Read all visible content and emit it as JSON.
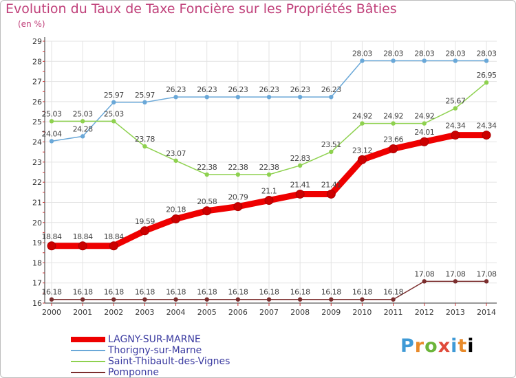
{
  "title": "Evolution du Taux de Taxe Foncière sur les Propriétés Bâties",
  "unit_label": "(en %)",
  "logo": [
    "P",
    "r",
    "o",
    "x",
    "i",
    "t",
    "i"
  ],
  "chart_data": {
    "type": "line",
    "x": [
      "2000",
      "2001",
      "2002",
      "2003",
      "2004",
      "2005",
      "2006",
      "2007",
      "2008",
      "2009",
      "2010",
      "2011",
      "2012",
      "2013",
      "2014"
    ],
    "ylim": [
      16,
      29
    ],
    "yticks": [
      "16",
      "17",
      "18",
      "19",
      "20",
      "21",
      "22",
      "23",
      "24",
      "25",
      "26",
      "27",
      "28",
      "29"
    ],
    "grid": true,
    "legend": "bottom-left",
    "series": [
      {
        "name": "LAGNY-SUR-MARNE",
        "color": "#ee0000",
        "values": [
          18.84,
          18.84,
          18.84,
          19.59,
          20.18,
          20.58,
          20.79,
          21.1,
          21.41,
          21.41,
          23.12,
          23.66,
          24.01,
          24.34,
          24.34
        ],
        "labels": [
          "18.84",
          "18.84",
          "18.84",
          "19.59",
          "20.18",
          "20.58",
          "20.79",
          "21.1",
          "21.41",
          "21.41",
          "23.12",
          "23.66",
          "24.01",
          "24.34",
          "24.34"
        ]
      },
      {
        "name": "Thorigny-sur-Marne",
        "color": "#6aa8d8",
        "values": [
          24.04,
          24.28,
          25.97,
          25.97,
          26.23,
          26.23,
          26.23,
          26.23,
          26.23,
          26.23,
          28.03,
          28.03,
          28.03,
          28.03,
          28.03
        ],
        "labels": [
          "24.04",
          "24.28",
          "25.97",
          "25.97",
          "26.23",
          "26.23",
          "26.23",
          "26.23",
          "26.23",
          "26.23",
          "28.03",
          "28.03",
          "28.03",
          "28.03",
          "28.03"
        ]
      },
      {
        "name": "Saint-Thibault-des-Vignes",
        "color": "#8ed14f",
        "values": [
          25.03,
          25.03,
          25.03,
          23.78,
          23.07,
          22.38,
          22.38,
          22.38,
          22.83,
          23.51,
          24.92,
          24.92,
          24.92,
          25.67,
          26.95
        ],
        "labels": [
          "25.03",
          "25.03",
          "25.03",
          "23.78",
          "23.07",
          "22.38",
          "22.38",
          "22.38",
          "22.83",
          "23.51",
          "24.92",
          "24.92",
          "24.92",
          "25.67",
          "26.95"
        ]
      },
      {
        "name": "Pomponne",
        "color": "#7b2e2e",
        "values": [
          16.18,
          16.18,
          16.18,
          16.18,
          16.18,
          16.18,
          16.18,
          16.18,
          16.18,
          16.18,
          16.18,
          16.18,
          17.08,
          17.08,
          17.08
        ],
        "labels": [
          "16.18",
          "16.18",
          "16.18",
          "16.18",
          "16.18",
          "16.18",
          "16.18",
          "16.18",
          "16.18",
          "16.18",
          "16.18",
          "16.18",
          "17.08",
          "17.08",
          "17.08"
        ]
      }
    ]
  }
}
